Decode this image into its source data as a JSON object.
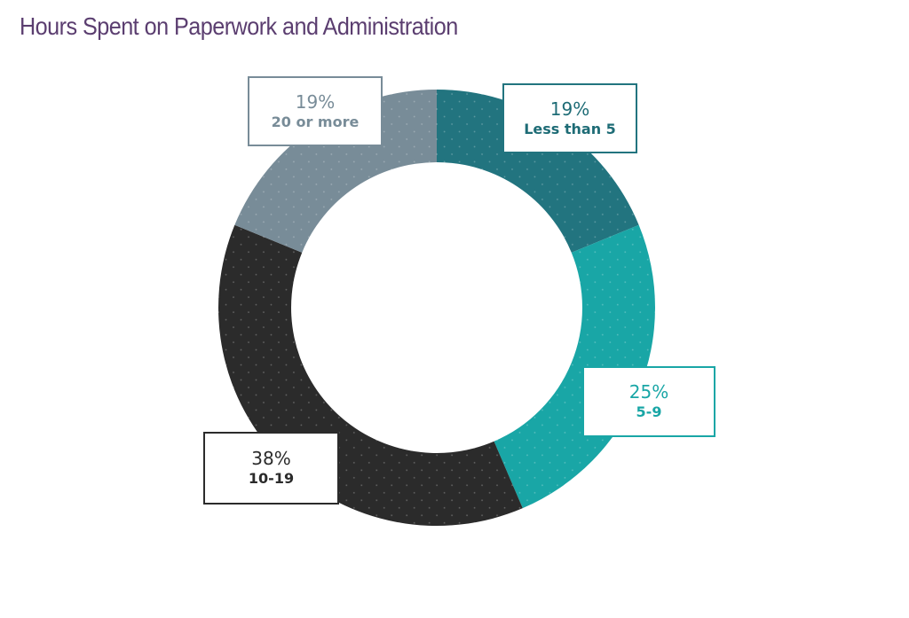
{
  "chart_data": {
    "type": "pie",
    "title": "Hours Spent on Paperwork and Administration",
    "donut": true,
    "slices": [
      {
        "key": "less5",
        "label": "Less than 5",
        "value": 19,
        "display": "19%",
        "color": "#22747f"
      },
      {
        "key": "five9",
        "label": "5-9",
        "value": 25,
        "display": "25%",
        "color": "#19a6a6"
      },
      {
        "key": "ten19",
        "label": "10-19",
        "value": 38,
        "display": "38%",
        "color": "#2b2b2b"
      },
      {
        "key": "twenty",
        "label": "20 or more",
        "value": 19,
        "display": "19%",
        "color": "#788c98"
      }
    ]
  },
  "colors": {
    "title": "#5b3e70",
    "background": "#ffffff"
  }
}
